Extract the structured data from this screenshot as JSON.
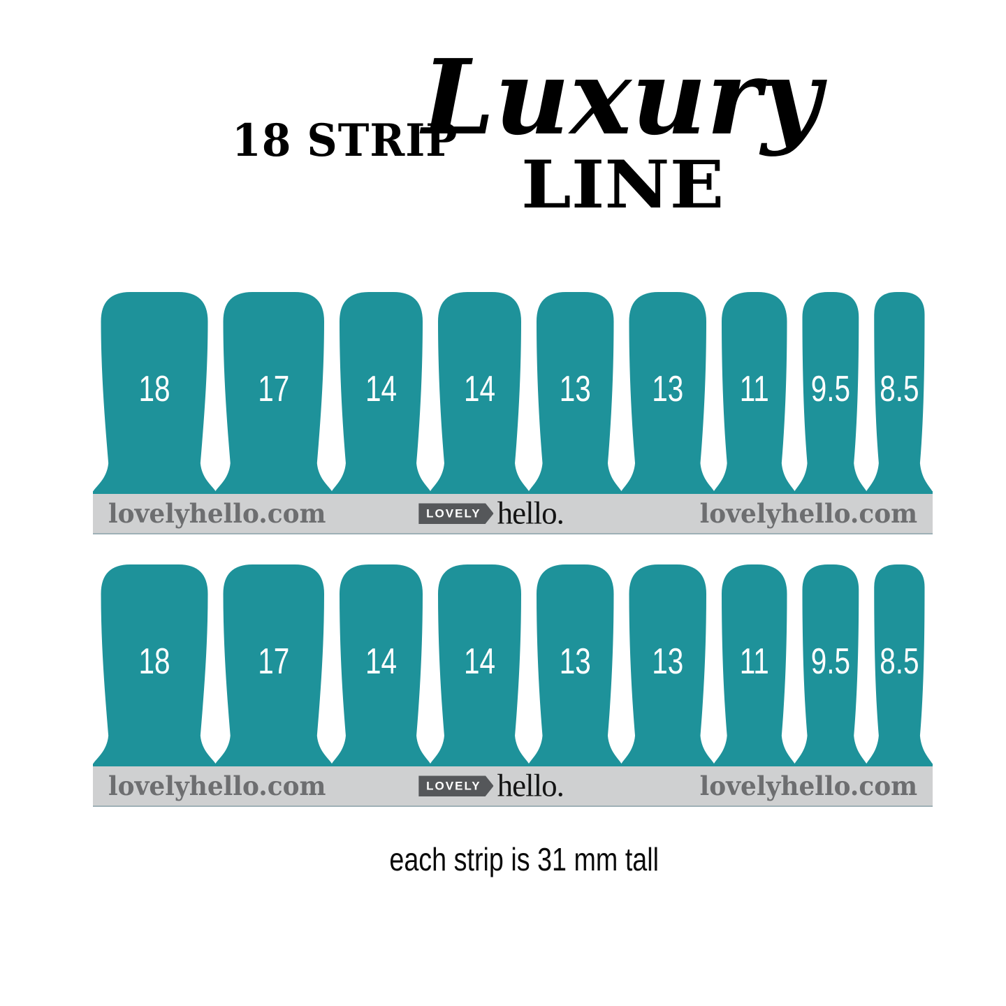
{
  "title": {
    "prefix": "18 STRIP",
    "script_word": "Luxury",
    "word": "LINE"
  },
  "strips": {
    "labels": [
      "18",
      "17",
      "14",
      "14",
      "13",
      "13",
      "11",
      "9.5",
      "8.5"
    ],
    "widths_mm": [
      18,
      17,
      14,
      14,
      13,
      13,
      11,
      9.5,
      8.5
    ]
  },
  "bar": {
    "left_url": "lovelyhello.com",
    "right_url": "lovelyhello.com",
    "logo": {
      "lovely": "LOVELY",
      "hello": "hello."
    }
  },
  "caption": "each strip is 31 mm tall",
  "colors": {
    "teal": "#1e929a",
    "bar_bg": "#cfd0d1",
    "bar_border_bottom": "#9eb0b6",
    "bar_text": "#6d6e70",
    "logo_tag_bg": "#55575a",
    "logo_tag_text": "#ffffff",
    "logo_hello_text": "#141414",
    "title_text": "#000000",
    "strip_label": "#ffffff",
    "caption_text": "#0a0a0a"
  }
}
